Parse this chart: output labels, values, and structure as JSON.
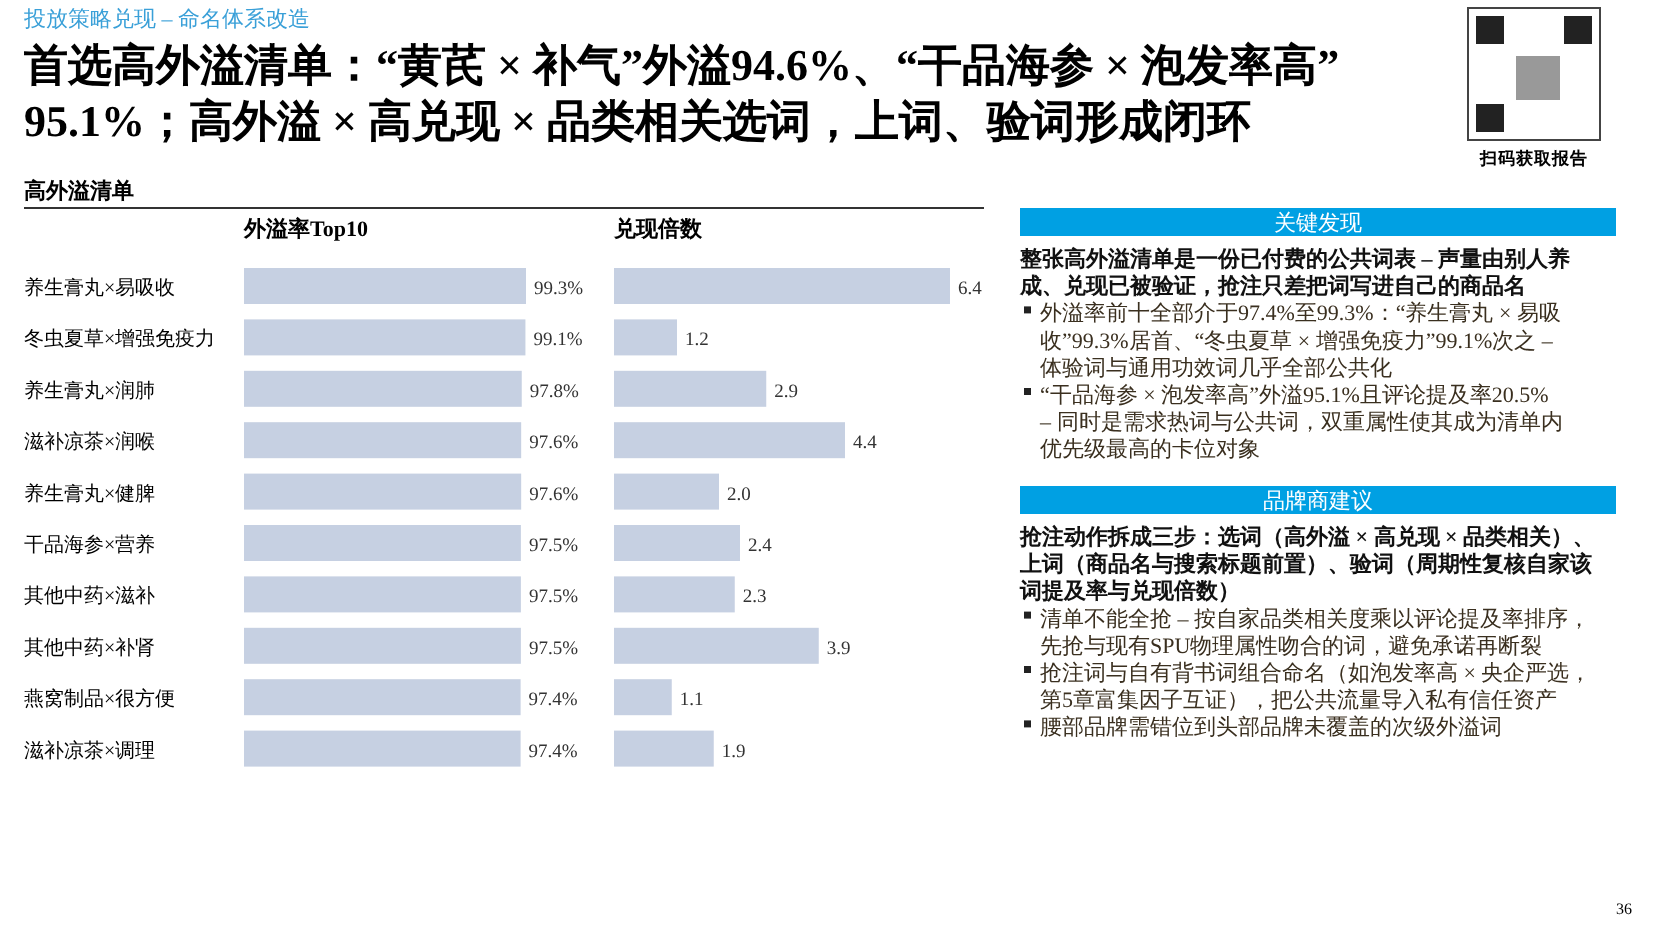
{
  "chart_data": [
    {
      "type": "bar",
      "orientation": "horizontal",
      "title": "外溢率Top10",
      "categories": [
        "养生膏丸×易吸收",
        "冬虫夏草×增强免疫力",
        "养生膏丸×润肺",
        "滋补凉茶×润喉",
        "养生膏丸×健脾",
        "干品海参×营养",
        "其他中药×滋补",
        "其他中药×补肾",
        "燕窝制品×很方便",
        "滋补凉茶×调理"
      ],
      "values": [
        99.3,
        99.1,
        97.8,
        97.6,
        97.6,
        97.5,
        97.5,
        97.5,
        97.4,
        97.4
      ],
      "value_labels": [
        "99.3%",
        "99.1%",
        "97.8%",
        "97.6%",
        "97.6%",
        "97.5%",
        "97.5%",
        "97.5%",
        "97.4%",
        "97.4%"
      ],
      "color": "#c6d0e2"
    },
    {
      "type": "bar",
      "orientation": "horizontal",
      "title": "兑现倍数",
      "categories": [
        null,
        null,
        null,
        null,
        null,
        null,
        null,
        null,
        null,
        null
      ],
      "values": [
        6.4,
        1.2,
        2.9,
        4.4,
        2.0,
        2.4,
        2.3,
        3.9,
        1.1,
        1.9
      ],
      "value_labels": [
        "6.4",
        "1.2",
        "2.9",
        "4.4",
        "2.0",
        "2.4",
        "2.3",
        "3.9",
        "1.1",
        "1.9"
      ],
      "color": "#c6d0e2"
    },
    {
      "type": "other",
      "title": "首选高外溢清单：“黄芪 × 补气”外溢94.6%、“干品海参 × 泡发率高”95.1%；高外溢 × 高兑现 × 品类相关选词，上词、验词形成闭环",
      "subtitle": "投放策略兑现 – 命名体系改造",
      "annotations": [
        "高外溢清单",
        "关键发现",
        "整张高外溢清单是一份已付费的公共词表 – 声量由别人养成、兑现已被验证，抢注只差把词写进自己的商品名",
        "外溢率前十全部介于97.4%至99.3%：“养生膏丸 × 易吸收”99.3%居首、“冬虫夏草 × 增强免疫力”99.1%次之 – 体验词与通用功效词几乎全部公共化",
        "“干品海参 × 泡发率高”外溢95.1%且评论提及率20.5% – 同时是需求热词与公共词，双重属性使其成为清单内优先级最高的卡位对象",
        "品牌商建议",
        "抢注动作拆成三步：选词（高外溢 × 高兑现 × 品类相关）、上词（商品名与搜索标题前置）、验词（周期性复核自家该词提及率与兑现倍数）",
        "清单不能全抢 – 按自家品类相关度乘以评论提及率排序，先抢与现有SPU物理属性吻合的词，避免承诺再断裂",
        "抢注词与自有背书词组合命名（如泡发率高 × 央企严选，第5章富集因子互证），把公共流量导入私有信任资产",
        "腰部品牌需错位到头部品牌未覆盖的次级外溢词",
        "扫码获取报告",
        "36"
      ]
    }
  ]
}
